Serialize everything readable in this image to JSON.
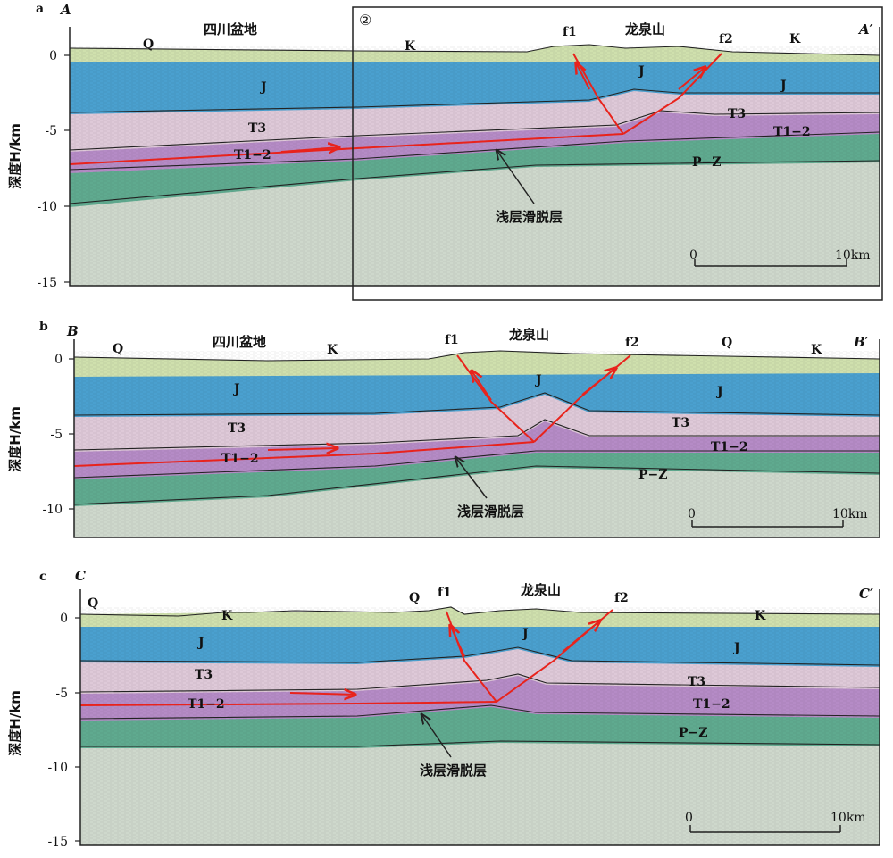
{
  "panels": [
    {
      "letter": "a",
      "left_label": "A",
      "right_label": "A′",
      "basin": "四川盆地",
      "mountain": "龙泉山",
      "box_label": "②",
      "y_ticks": [
        "0",
        "-5",
        "-10",
        "-15"
      ],
      "y_axis": "深度H/km",
      "units": {
        "J": "J",
        "T3": "T3",
        "T12": "T1−2",
        "PZ": "P−Z",
        "K": "K",
        "Q": "Q"
      },
      "faults": [
        "f1",
        "f2"
      ],
      "detachment": "浅层滑脱层",
      "scale_start": "0",
      "scale_end": "10km"
    },
    {
      "letter": "b",
      "left_label": "B",
      "right_label": "B′",
      "basin": "四川盆地",
      "mountain": "龙泉山",
      "y_ticks": [
        "0",
        "-5",
        "-10"
      ],
      "y_axis": "深度H/km",
      "units": {
        "J": "J",
        "T3": "T3",
        "T12": "T1−2",
        "PZ": "P−Z",
        "K": "K",
        "Q": "Q"
      },
      "faults": [
        "f1",
        "f2"
      ],
      "detachment": "浅层滑脱层",
      "scale_start": "0",
      "scale_end": "10km"
    },
    {
      "letter": "c",
      "left_label": "C",
      "right_label": "C′",
      "mountain": "龙泉山",
      "y_ticks": [
        "0",
        "-5",
        "-10",
        "-15"
      ],
      "y_axis": "深度H/km",
      "units": {
        "J": "J",
        "T3": "T3",
        "T12": "T1−2",
        "PZ": "P−Z",
        "K": "K",
        "Q": "Q"
      },
      "faults": [
        "f1",
        "f2"
      ],
      "detachment": "浅层滑脱层",
      "scale_start": "0",
      "scale_end": "10km"
    }
  ],
  "colors": {
    "Q": "#e4edc8",
    "K": "#cfe0ad",
    "J": "#4aa0cf",
    "T3": "#dec9d8",
    "T12": "#b58bc6",
    "PZ": "#5faa8f",
    "basement": "#ced8cc",
    "fault": "#e8231c"
  }
}
